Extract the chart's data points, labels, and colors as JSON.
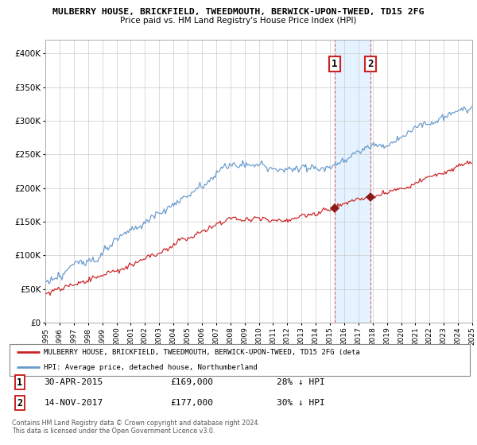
{
  "title1": "MULBERRY HOUSE, BRICKFIELD, TWEEDMOUTH, BERWICK-UPON-TWEED, TD15 2FG",
  "title2": "Price paid vs. HM Land Registry's House Price Index (HPI)",
  "ylim": [
    0,
    420000
  ],
  "yticks": [
    0,
    50000,
    100000,
    150000,
    200000,
    250000,
    300000,
    350000,
    400000
  ],
  "ytick_labels": [
    "£0",
    "£50K",
    "£100K",
    "£150K",
    "£200K",
    "£250K",
    "£300K",
    "£350K",
    "£400K"
  ],
  "hpi_color": "#6699cc",
  "property_color": "#cc2222",
  "marker_color": "#8b1a1a",
  "sale1_date": "30-APR-2015",
  "sale1_price": "£169,000",
  "sale1_hpi": "28% ↓ HPI",
  "sale2_date": "14-NOV-2017",
  "sale2_price": "£177,000",
  "sale2_hpi": "30% ↓ HPI",
  "legend_property": "MULBERRY HOUSE, BRICKFIELD, TWEEDMOUTH, BERWICK-UPON-TWEED, TD15 2FG (deta",
  "legend_hpi": "HPI: Average price, detached house, Northumberland",
  "footer1": "Contains HM Land Registry data © Crown copyright and database right 2024.",
  "footer2": "This data is licensed under the Open Government Licence v3.0.",
  "background_color": "#ffffff",
  "grid_color": "#cccccc",
  "sale1_year": 2015.33,
  "sale2_year": 2017.87,
  "start_year": 1995,
  "end_year": 2025
}
